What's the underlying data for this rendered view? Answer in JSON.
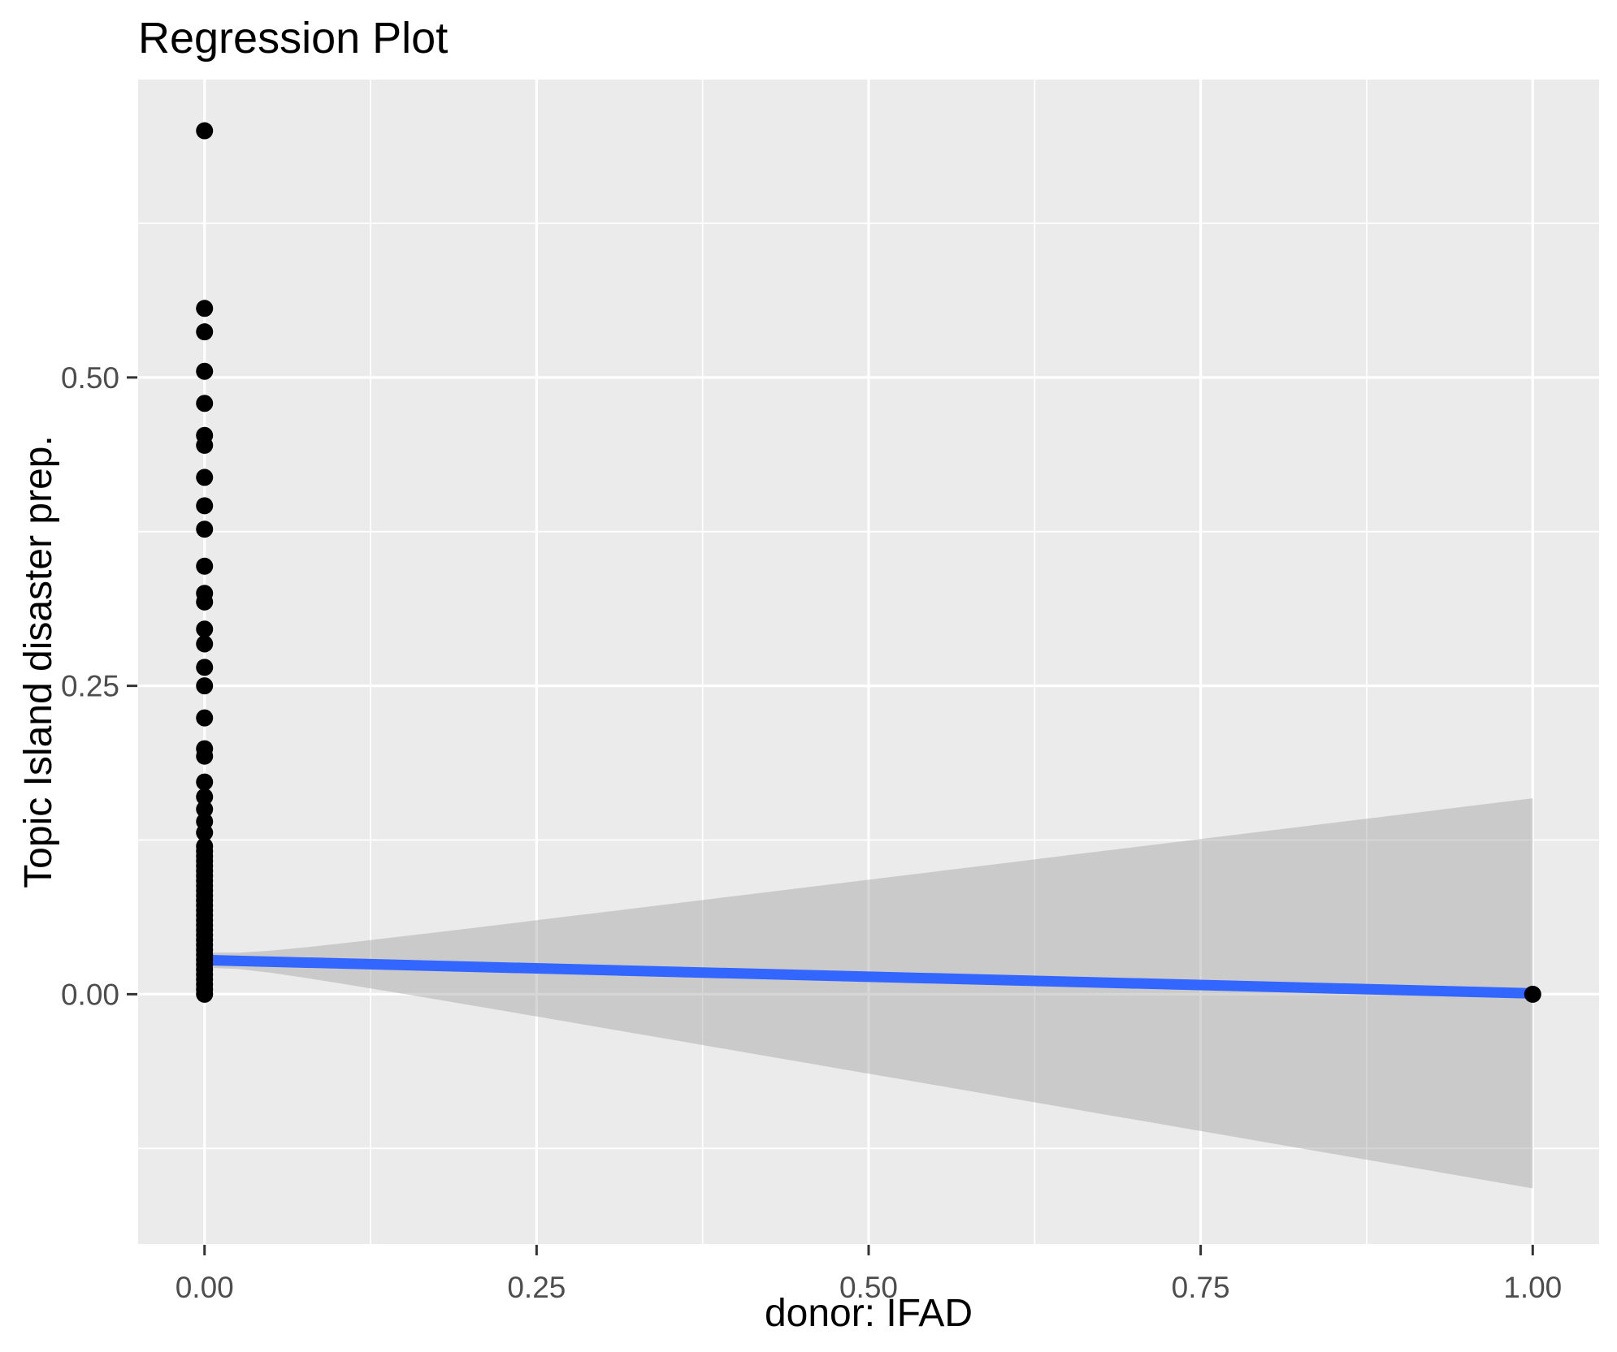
{
  "chart_data": {
    "type": "scatter",
    "title": "Regression Plot",
    "xlabel": "donor: IFAD",
    "ylabel": "Topic Island disaster prep.",
    "xlim": [
      -0.05,
      1.05
    ],
    "ylim": [
      -0.2025,
      0.7415
    ],
    "grid": "on",
    "legend": "none",
    "x_major_ticks": [
      {
        "value": 0.0,
        "label": "0.00"
      },
      {
        "value": 0.25,
        "label": "0.25"
      },
      {
        "value": 0.5,
        "label": "0.50"
      },
      {
        "value": 0.75,
        "label": "0.75"
      },
      {
        "value": 1.0,
        "label": "1.00"
      }
    ],
    "y_major_ticks": [
      {
        "value": 0.0,
        "label": "0.00"
      },
      {
        "value": 0.25,
        "label": "0.25"
      },
      {
        "value": 0.5,
        "label": "0.50"
      }
    ],
    "x_minor_gridlines": [
      0.125,
      0.375,
      0.625,
      0.875
    ],
    "y_minor_gridlines": [
      -0.125,
      0.125,
      0.375,
      0.625
    ],
    "points": [
      [
        0,
        0.7
      ],
      [
        0,
        0.556
      ],
      [
        0,
        0.537
      ],
      [
        0,
        0.505
      ],
      [
        0,
        0.479
      ],
      [
        0,
        0.453
      ],
      [
        0,
        0.445
      ],
      [
        0,
        0.419
      ],
      [
        0,
        0.396
      ],
      [
        0,
        0.377
      ],
      [
        0,
        0.347
      ],
      [
        0,
        0.325
      ],
      [
        0,
        0.318
      ],
      [
        0,
        0.296
      ],
      [
        0,
        0.284
      ],
      [
        0,
        0.265
      ],
      [
        0,
        0.25
      ],
      [
        0,
        0.224
      ],
      [
        0,
        0.199
      ],
      [
        0,
        0.193
      ],
      [
        0,
        0.172
      ],
      [
        0,
        0.16
      ],
      [
        0,
        0.15
      ],
      [
        0,
        0.14
      ],
      [
        0,
        0.131
      ],
      [
        0,
        0.12
      ],
      [
        0,
        0.116
      ],
      [
        0,
        0.112
      ],
      [
        0,
        0.108
      ],
      [
        0,
        0.104
      ],
      [
        0,
        0.1
      ],
      [
        0,
        0.096
      ],
      [
        0,
        0.092
      ],
      [
        0,
        0.088
      ],
      [
        0,
        0.084
      ],
      [
        0,
        0.08
      ],
      [
        0,
        0.076
      ],
      [
        0,
        0.072
      ],
      [
        0,
        0.068
      ],
      [
        0,
        0.064
      ],
      [
        0,
        0.06
      ],
      [
        0,
        0.056
      ],
      [
        0,
        0.052
      ],
      [
        0,
        0.048
      ],
      [
        0,
        0.044
      ],
      [
        0,
        0.04
      ],
      [
        0,
        0.036
      ],
      [
        0,
        0.032
      ],
      [
        0,
        0.028
      ],
      [
        0,
        0.024
      ],
      [
        0,
        0.02
      ],
      [
        0,
        0.016
      ],
      [
        0,
        0.012
      ],
      [
        0,
        0.008
      ],
      [
        0,
        0.004
      ],
      [
        0,
        0.0
      ],
      [
        1,
        0.0
      ]
    ],
    "regression_line": {
      "intercept": 0.0277,
      "slope": -0.027,
      "x_start": 0,
      "x_end": 1
    },
    "confidence_band": {
      "half_width_at_mean": 0.006,
      "flare_coefficient": 0.1593,
      "x_mean": 0.008,
      "x_start": 0,
      "x_end": 1
    },
    "colors": {
      "panel_background": "#EBEBEB",
      "gridline": "#FFFFFF",
      "point": "#000000",
      "regression_line": "#3366FF",
      "confidence_band": "rgba(153,153,153,0.40)",
      "tick_mark": "#333333",
      "tick_label": "#4D4D4D",
      "axis_title": "#000000",
      "plot_title": "#000000"
    }
  }
}
